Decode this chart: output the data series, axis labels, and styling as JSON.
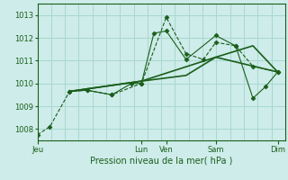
{
  "background_color": "#ceecea",
  "grid_color": "#a8d8d0",
  "line_color": "#1a5e1a",
  "xlabel": "Pression niveau de la mer( hPa )",
  "ylim": [
    1007.5,
    1013.5
  ],
  "yticks": [
    1008,
    1009,
    1010,
    1011,
    1012,
    1013
  ],
  "xtick_labels": [
    "Jeu",
    "Lun",
    "Ven",
    "Sam",
    "Dim"
  ],
  "xtick_positions": [
    0.0,
    0.42,
    0.52,
    0.72,
    0.97
  ],
  "xlim": [
    0.0,
    1.0
  ],
  "series": [
    {
      "name": "line1_dotted_sparse",
      "x": [
        0.0,
        0.05,
        0.13,
        0.2,
        0.3,
        0.42,
        0.52,
        0.6,
        0.67,
        0.72,
        0.8,
        0.87,
        0.97
      ],
      "y": [
        1007.75,
        1008.1,
        1009.65,
        1009.7,
        1009.5,
        1010.0,
        1012.9,
        1011.3,
        1011.05,
        1011.8,
        1011.65,
        1010.75,
        1010.5
      ],
      "marker": "D",
      "markersize": 2.5,
      "linewidth": 0.8,
      "linestyle": "--"
    },
    {
      "name": "line2_solid_spiky",
      "x": [
        0.13,
        0.2,
        0.3,
        0.38,
        0.42,
        0.47,
        0.52,
        0.6,
        0.72,
        0.8,
        0.87,
        0.92,
        0.97
      ],
      "y": [
        1009.65,
        1009.7,
        1009.5,
        1010.0,
        1010.0,
        1012.2,
        1012.3,
        1011.05,
        1012.1,
        1011.65,
        1009.35,
        1009.85,
        1010.5
      ],
      "marker": "D",
      "markersize": 2.5,
      "linewidth": 0.8,
      "linestyle": "-"
    },
    {
      "name": "line3_smooth",
      "x": [
        0.13,
        0.42,
        0.6,
        0.72,
        0.87,
        0.97
      ],
      "y": [
        1009.65,
        1010.1,
        1010.35,
        1011.15,
        1011.65,
        1010.5
      ],
      "marker": null,
      "markersize": 0,
      "linewidth": 1.2,
      "linestyle": "-"
    },
    {
      "name": "line4_gradual",
      "x": [
        0.13,
        0.42,
        0.72,
        0.97
      ],
      "y": [
        1009.65,
        1010.1,
        1011.15,
        1010.5
      ],
      "marker": null,
      "markersize": 0,
      "linewidth": 1.2,
      "linestyle": "-"
    }
  ]
}
